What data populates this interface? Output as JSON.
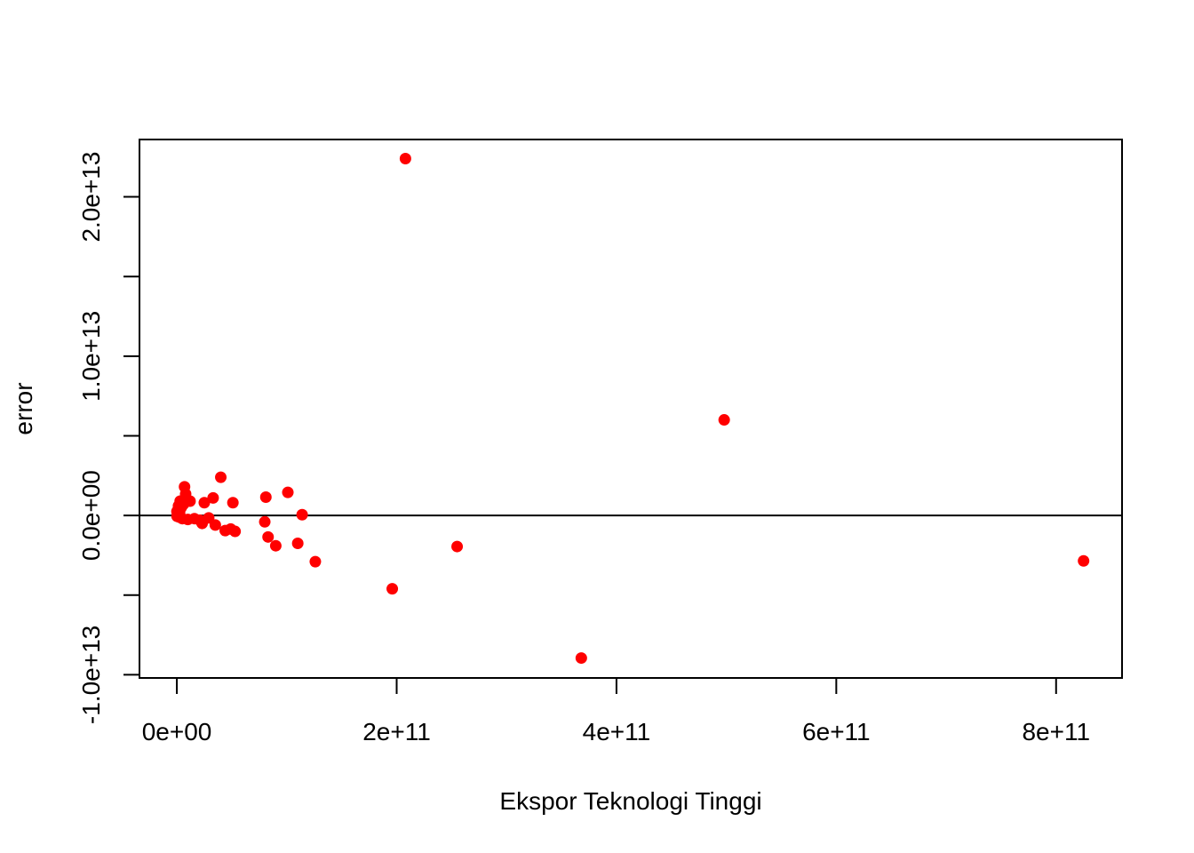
{
  "chart_data": {
    "type": "scatter",
    "title": "",
    "xlabel": "Ekspor Teknologi Tinggi",
    "ylabel": "error",
    "xlim": [
      -34000000000.0,
      860000000000.0
    ],
    "ylim": [
      -10200000000000.0,
      23600000000000.0
    ],
    "xticks": [
      0,
      200000000000.0,
      400000000000.0,
      600000000000.0,
      800000000000.0
    ],
    "xtick_labels": [
      "0e+00",
      "2e+11",
      "4e+11",
      "6e+11",
      "8e+11"
    ],
    "yticks": [
      -10000000000000.0,
      -5000000000000.0,
      0,
      5000000000000.0,
      10000000000000.0,
      15000000000000.0,
      20000000000000.0
    ],
    "ytick_labels": [
      "-1.0e+13",
      "",
      "0.0e+00",
      "",
      "1.0e+13",
      "",
      "2.0e+13"
    ],
    "hline": 0,
    "point_color": "#ff0000",
    "points": [
      {
        "x": 208000000000.0,
        "y": 22400000000000.0
      },
      {
        "x": 498000000000.0,
        "y": 6000000000000.0
      },
      {
        "x": 825000000000.0,
        "y": -2850000000000.0
      },
      {
        "x": 368000000000.0,
        "y": -8950000000000.0
      },
      {
        "x": 255000000000.0,
        "y": -1950000000000.0
      },
      {
        "x": 196000000000.0,
        "y": -4600000000000.0
      },
      {
        "x": 126000000000.0,
        "y": -2900000000000.0
      },
      {
        "x": 114000000000.0,
        "y": 50000000000.0
      },
      {
        "x": 110000000000.0,
        "y": -1750000000000.0
      },
      {
        "x": 101000000000.0,
        "y": 1450000000000.0
      },
      {
        "x": 90000000000.0,
        "y": -1900000000000.0
      },
      {
        "x": 83000000000.0,
        "y": -1350000000000.0
      },
      {
        "x": 81000000000.0,
        "y": 1150000000000.0
      },
      {
        "x": 80000000000.0,
        "y": -400000000000.0
      },
      {
        "x": 53000000000.0,
        "y": -1000000000000.0
      },
      {
        "x": 51000000000.0,
        "y": 800000000000.0
      },
      {
        "x": 49000000000.0,
        "y": -850000000000.0
      },
      {
        "x": 44000000000.0,
        "y": -950000000000.0
      },
      {
        "x": 40000000000.0,
        "y": 2400000000000.0
      },
      {
        "x": 35000000000.0,
        "y": -600000000000.0
      },
      {
        "x": 33000000000.0,
        "y": 1100000000000.0
      },
      {
        "x": 29000000000.0,
        "y": -150000000000.0
      },
      {
        "x": 25000000000.0,
        "y": 800000000000.0
      },
      {
        "x": 23000000000.0,
        "y": -500000000000.0
      },
      {
        "x": 21000000000.0,
        "y": -300000000000.0
      },
      {
        "x": 16000000000.0,
        "y": -200000000000.0
      },
      {
        "x": 12000000000.0,
        "y": 900000000000.0
      },
      {
        "x": 10000000000.0,
        "y": -250000000000.0
      },
      {
        "x": 8000000000.0,
        "y": 1350000000000.0
      },
      {
        "x": 7000000000.0,
        "y": 1800000000000.0
      },
      {
        "x": 6000000000.0,
        "y": 700000000000.0
      },
      {
        "x": 5000000000.0,
        "y": -200000000000.0
      },
      {
        "x": 4000000000.0,
        "y": 500000000000.0
      },
      {
        "x": 3000000000.0,
        "y": 900000000000.0
      },
      {
        "x": 2500000000.0,
        "y": 200000000000.0
      },
      {
        "x": 2000000000.0,
        "y": -100000000000.0
      },
      {
        "x": 1500000000.0,
        "y": 600000000000.0
      },
      {
        "x": 1000000000.0,
        "y": 350000000000.0
      },
      {
        "x": 500000000.0,
        "y": 100000000000.0
      },
      {
        "x": 200000000.0,
        "y": -50000000000.0
      },
      {
        "x": 100000000.0,
        "y": 250000000000.0
      }
    ]
  }
}
